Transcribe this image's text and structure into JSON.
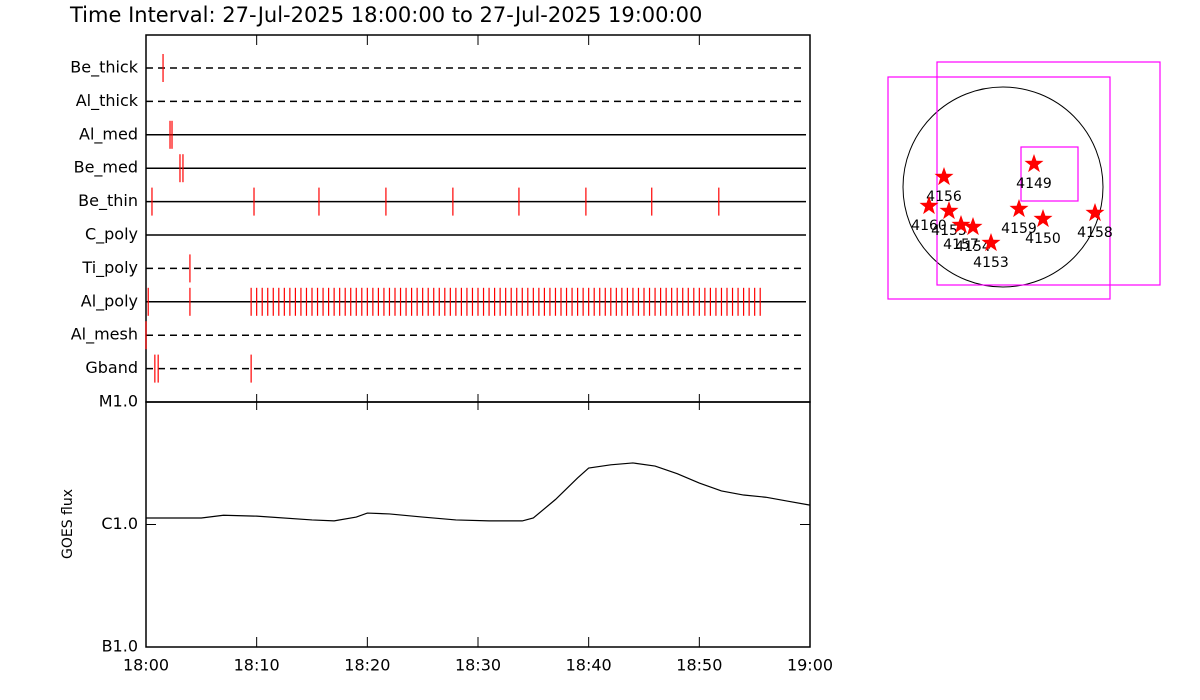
{
  "chart_data": [
    {
      "type": "timeline",
      "title": "Time Interval: 27-Jul-2025 18:00:00 to 27-Jul-2025 19:00:00",
      "categories": [
        "Be_thick",
        "Al_thick",
        "Al_med",
        "Be_med",
        "Be_thin",
        "C_poly",
        "Ti_poly",
        "Al_poly",
        "Al_mesh",
        "Gband"
      ],
      "styles": [
        "dashed",
        "dashed",
        "solid",
        "solid",
        "solid",
        "solid",
        "dashed",
        "solid",
        "dashed",
        "dashed"
      ],
      "events": [
        [
          1.54
        ],
        [],
        [
          2.17,
          2.35
        ],
        [
          3.07,
          3.34
        ],
        [
          0.54,
          9.76,
          15.63,
          21.68,
          27.73,
          33.7,
          39.75,
          45.7,
          51.76
        ],
        [],
        [
          3.97
        ],
        [
          0.2,
          3.97,
          9.5,
          10,
          10.5,
          11,
          11.5,
          12,
          12.5,
          13,
          13.5,
          14,
          14.5,
          15,
          15.5,
          16,
          16.5,
          17,
          17.5,
          18,
          18.5,
          19,
          19.5,
          20,
          20.5,
          21,
          21.5,
          22,
          22.5,
          23,
          23.5,
          24,
          24.5,
          25,
          25.5,
          26,
          26.5,
          27,
          27.5,
          28,
          28.5,
          29,
          29.5,
          30,
          30.5,
          31,
          31.5,
          32,
          32.5,
          33,
          33.5,
          34,
          34.5,
          35,
          35.5,
          36,
          36.5,
          37,
          37.5,
          38,
          38.5,
          39,
          39.5,
          40,
          40.5,
          41,
          41.5,
          42,
          42.5,
          43,
          43.5,
          44,
          44.5,
          45,
          45.5,
          46,
          46.5,
          47,
          47.5,
          48,
          48.5,
          49,
          49.5,
          50,
          50.5,
          51,
          51.5,
          52,
          52.5,
          53,
          53.5,
          54,
          54.5,
          55,
          55.5
        ],
        [
          0
        ],
        [
          0.8,
          1.1,
          9.5
        ]
      ],
      "xlim": [
        0,
        60
      ],
      "color": "#ff0000"
    },
    {
      "type": "line",
      "ylabel": "GOES flux",
      "x": [
        0,
        5,
        7,
        10,
        15,
        17,
        19,
        20,
        22,
        25,
        28,
        31,
        34,
        35,
        37,
        39,
        40,
        42,
        44,
        46,
        48,
        50,
        52,
        54,
        56,
        58,
        60
      ],
      "values": [
        1.13e-06,
        1.13e-06,
        1.19e-06,
        1.17e-06,
        1.09e-06,
        1.07e-06,
        1.15e-06,
        1.24e-06,
        1.22e-06,
        1.15e-06,
        1.09e-06,
        1.07e-06,
        1.07e-06,
        1.13e-06,
        1.6e-06,
        2.4e-06,
        2.89e-06,
        3.07e-06,
        3.18e-06,
        3e-06,
        2.6e-06,
        2.18e-06,
        1.88e-06,
        1.74e-06,
        1.67e-06,
        1.55e-06,
        1.44e-06
      ],
      "color": "#000000",
      "xlim": [
        0,
        60
      ],
      "xticks": [
        {
          "value": 0,
          "label": "18:00"
        },
        {
          "value": 10,
          "label": "18:10"
        },
        {
          "value": 20,
          "label": "18:20"
        },
        {
          "value": 30,
          "label": "18:30"
        },
        {
          "value": 40,
          "label": "18:40"
        },
        {
          "value": 50,
          "label": "18:50"
        },
        {
          "value": 60,
          "label": "19:00"
        }
      ],
      "ylim": [
        1e-07,
        1e-05
      ],
      "yticks": [
        {
          "value": 1e-05,
          "label": "M1.0"
        },
        {
          "value": 1e-06,
          "label": "C1.0"
        },
        {
          "value": 1e-07,
          "label": "B1.0"
        }
      ],
      "log_scale": true
    },
    {
      "type": "scatter",
      "labels": [
        "4156",
        "4149",
        "4160",
        "4155",
        "4157",
        "4154",
        "4153",
        "4159",
        "4150",
        "4158"
      ],
      "x": [
        -0.59,
        0.31,
        -0.74,
        -0.54,
        -0.42,
        -0.3,
        -0.12,
        0.16,
        0.4,
        0.92
      ],
      "y": [
        0.1,
        0.23,
        -0.19,
        -0.24,
        -0.38,
        -0.4,
        -0.56,
        -0.22,
        -0.32,
        -0.26
      ],
      "color": "#ff0000",
      "boxes": [
        [
          -1.15,
          1.1,
          1.07,
          -1.12
        ],
        [
          -0.66,
          1.25,
          1.57,
          -0.98
        ],
        [
          0.18,
          0.4,
          0.75,
          -0.14
        ]
      ],
      "box_color": "#ff00ff"
    }
  ]
}
